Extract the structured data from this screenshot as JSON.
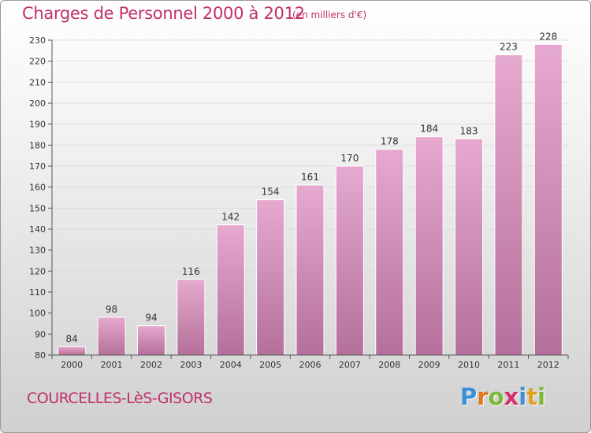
{
  "title": "Charges de Personnel 2000 à 2012",
  "subtitle": "(en milliers d'€)",
  "commune": "COURCELLES-LèS-GISORS",
  "logo": {
    "letters": [
      "P",
      "r",
      "o",
      "x",
      "i",
      "t",
      "i"
    ],
    "colors": [
      "#3a8fd6",
      "#e07a1e",
      "#7ab83a",
      "#d62e6e",
      "#3a8fd6",
      "#e0a01e",
      "#7ab83a"
    ]
  },
  "colors": {
    "bar_light": "#e6a9cf",
    "bar_dark": "#b4709a",
    "accent": "#c0306a"
  },
  "chart_data": {
    "type": "bar",
    "categories": [
      "2000",
      "2001",
      "2002",
      "2003",
      "2004",
      "2005",
      "2006",
      "2007",
      "2008",
      "2009",
      "2010",
      "2011",
      "2012"
    ],
    "values": [
      84,
      98,
      94,
      116,
      142,
      154,
      161,
      170,
      178,
      184,
      183,
      223,
      228
    ],
    "title": "Charges de Personnel 2000 à 2012",
    "subtitle": "(en milliers d'€)",
    "xlabel": "",
    "ylabel": "",
    "ylim": [
      80,
      230
    ],
    "yticks": [
      80,
      90,
      100,
      110,
      120,
      130,
      140,
      150,
      160,
      170,
      180,
      190,
      200,
      210,
      220,
      230
    ],
    "grid": true,
    "data_labels": true
  }
}
